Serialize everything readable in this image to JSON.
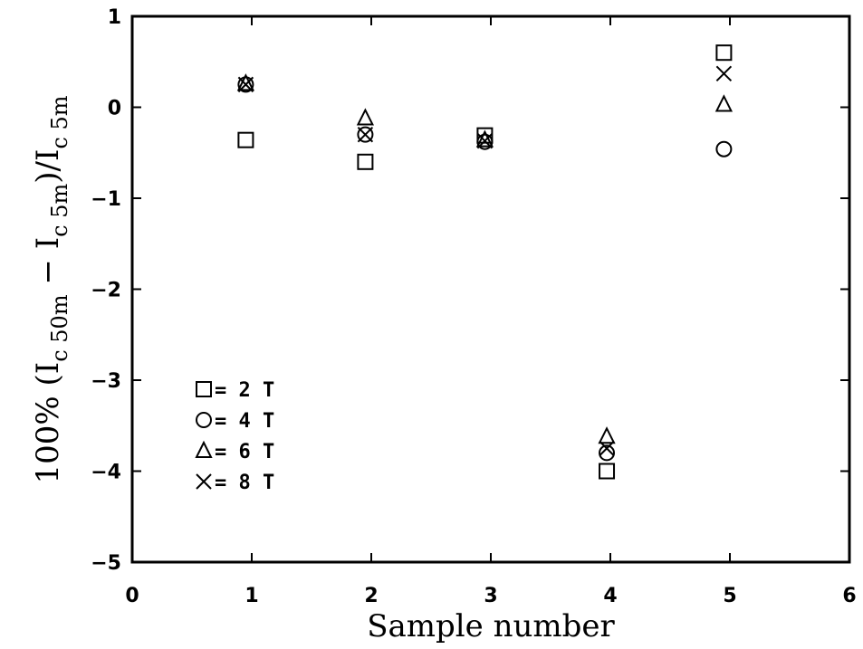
{
  "chart_data": {
    "type": "scatter",
    "xlabel": "Sample number",
    "ylabel": {
      "prefix": "100% (I",
      "sub1": "c 50m",
      "mid": " − I",
      "sub2": "c 5m",
      "mid2": ")/I",
      "sub3": "c 5m"
    },
    "xlim": [
      0,
      6
    ],
    "ylim": [
      -5,
      1
    ],
    "x_ticks": [
      "0",
      "1",
      "2",
      "3",
      "4",
      "5",
      "6"
    ],
    "y_ticks": [
      "1",
      "0",
      "−1",
      "−2",
      "−3",
      "−4",
      "−5"
    ],
    "grid": false,
    "legend_position": "lower-left",
    "series": [
      {
        "name": "2 T",
        "legend_label": "= 2 T",
        "marker": "square",
        "x": [
          0.95,
          1.95,
          2.95,
          3.97,
          4.95
        ],
        "y": [
          -0.36,
          -0.6,
          -0.31,
          -4.0,
          0.6
        ]
      },
      {
        "name": "4 T",
        "legend_label": "= 4 T",
        "marker": "circle",
        "x": [
          0.95,
          1.95,
          2.95,
          3.97,
          4.95
        ],
        "y": [
          0.25,
          -0.3,
          -0.38,
          -3.8,
          -0.46
        ]
      },
      {
        "name": "6 T",
        "legend_label": "= 6 T",
        "marker": "triangle",
        "x": [
          0.95,
          1.95,
          2.95,
          3.97,
          4.95
        ],
        "y": [
          0.26,
          -0.12,
          -0.36,
          -3.62,
          0.03
        ]
      },
      {
        "name": "8 T",
        "legend_label": "= 8 T",
        "marker": "cross",
        "x": [
          0.95,
          1.95,
          2.95,
          3.97,
          4.95
        ],
        "y": [
          0.25,
          -0.3,
          -0.37,
          -3.75,
          0.37
        ]
      }
    ]
  }
}
